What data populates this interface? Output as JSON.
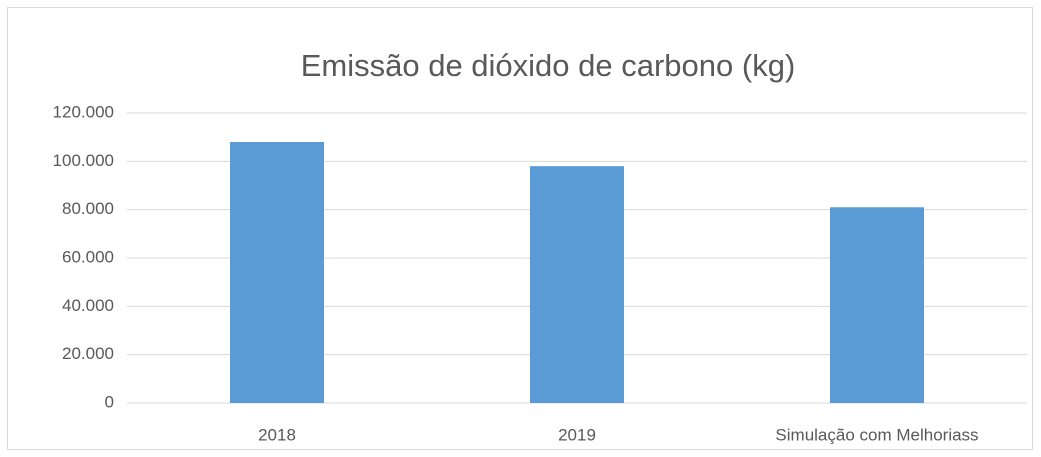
{
  "chart_data": {
    "type": "bar",
    "title": "Emissão de dióxido de carbono (kg)",
    "categories": [
      "2018",
      "2019",
      "Simulação com Melhoriass"
    ],
    "values": [
      108000,
      98000,
      81000
    ],
    "color": "#5b9bd5",
    "ylim": [
      0,
      120000
    ],
    "yticks": [
      0,
      {
        "value": 20000,
        "label": "20.000"
      },
      {
        "value": 40000,
        "label": "40.000"
      },
      {
        "value": 60000,
        "label": "60.000"
      },
      {
        "value": 80000,
        "label": "80.000"
      },
      {
        "value": 100000,
        "label": "100.000"
      },
      {
        "value": 120000,
        "label": "120.000"
      }
    ],
    "grid": true
  }
}
